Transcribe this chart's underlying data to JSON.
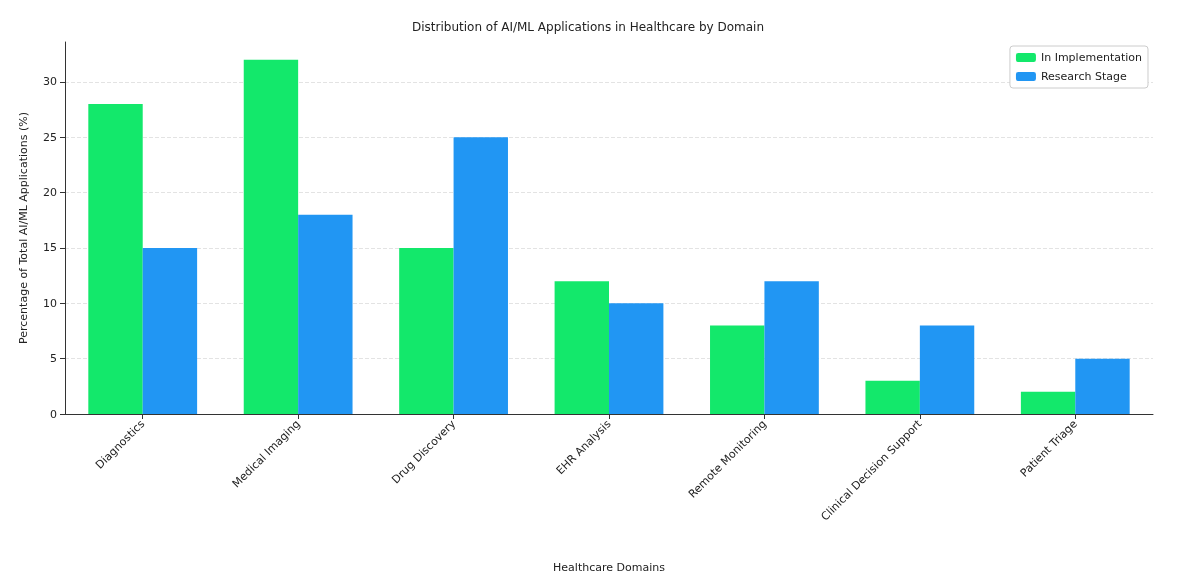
{
  "chart_data": {
    "type": "bar",
    "title": "Distribution of AI/ML Applications in Healthcare by Domain",
    "xlabel": "Healthcare Domains",
    "ylabel": "Percentage of Total AI/ML Applications (%)",
    "categories": [
      "Diagnostics",
      "Medical Imaging",
      "Drug Discovery",
      "EHR Analysis",
      "Remote Monitoring",
      "Clinical Decision Support",
      "Patient Triage"
    ],
    "series": [
      {
        "name": "In Implementation",
        "color": "#13e86b",
        "values": [
          28,
          32,
          15,
          12,
          8,
          3,
          2
        ]
      },
      {
        "name": "Research Stage",
        "color": "#2196f3",
        "values": [
          15,
          18,
          25,
          10,
          12,
          8,
          5
        ]
      }
    ],
    "ylim": [
      0,
      33.6
    ],
    "yticks": [
      0,
      5,
      10,
      15,
      20,
      25,
      30
    ],
    "grid": "y",
    "legend": "top right"
  }
}
